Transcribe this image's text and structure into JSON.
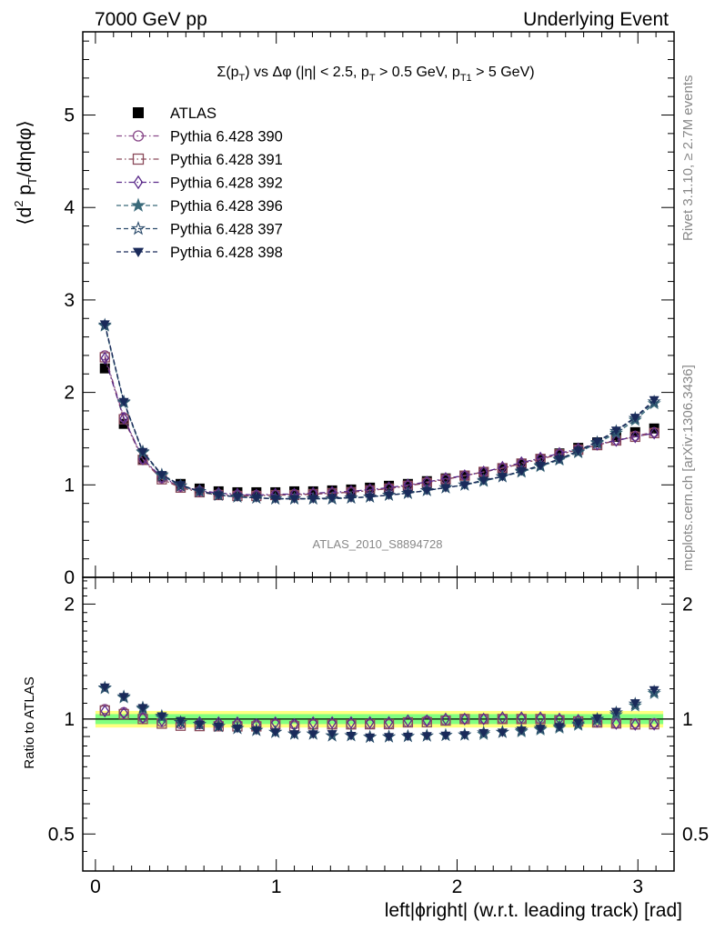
{
  "header": {
    "left": "7000 GeV pp",
    "right": "Underlying Event"
  },
  "side_labels": {
    "rivet": "Rivet 3.1.10, ≥ 2.7M events",
    "mcplots": "mcplots.cern.ch [arXiv:1306.3436]"
  },
  "chart_data": [
    {
      "type": "line",
      "title": "Σ(p_T) vs Δφ (|η| < 2.5, p_T > 0.5 GeV, p_T1 > 5 GeV)",
      "title_parts": {
        "a": "Σ(p",
        "a_sub": "T",
        "b": ") vs Δφ (|η| < 2.5, p",
        "b_sub": "T",
        "c": " > 0.5 GeV, p",
        "c_sub": "T1",
        "d": " > 5 GeV)"
      },
      "ylabel": "⟨d² p_T/dηdφ⟩",
      "ylabel_parts": {
        "a": "⟨d",
        "sup": "2",
        "b": " p",
        "sub": "T",
        "c": "/dηdφ⟩"
      },
      "xlim": [
        -0.07,
        3.2
      ],
      "ylim": [
        0,
        5.9
      ],
      "yticks": [
        "0",
        "1",
        "2",
        "3",
        "4",
        "5"
      ],
      "watermark": "ATLAS_2010_S8894728",
      "legend_position": "top-left",
      "x": [
        0.052,
        0.157,
        0.262,
        0.367,
        0.471,
        0.576,
        0.681,
        0.785,
        0.89,
        0.995,
        1.1,
        1.204,
        1.309,
        1.414,
        1.518,
        1.623,
        1.728,
        1.833,
        1.937,
        2.042,
        2.147,
        2.251,
        2.356,
        2.461,
        2.566,
        2.67,
        2.775,
        2.88,
        2.985,
        3.09
      ],
      "series": [
        {
          "name": "ATLAS",
          "color": "#000000",
          "marker": "square-filled",
          "line": "none",
          "values": [
            2.26,
            1.66,
            1.27,
            1.09,
            1.01,
            0.96,
            0.93,
            0.92,
            0.92,
            0.92,
            0.93,
            0.93,
            0.94,
            0.95,
            0.97,
            0.99,
            1.01,
            1.04,
            1.07,
            1.1,
            1.14,
            1.18,
            1.23,
            1.28,
            1.34,
            1.4,
            1.46,
            1.52,
            1.57,
            1.61
          ]
        },
        {
          "name": "Pythia 6.428 390",
          "color": "#8a4a8a",
          "marker": "circle-open",
          "line": "dashdot",
          "values": [
            2.4,
            1.73,
            1.28,
            1.07,
            0.98,
            0.93,
            0.9,
            0.89,
            0.89,
            0.89,
            0.9,
            0.9,
            0.91,
            0.92,
            0.94,
            0.96,
            0.99,
            1.03,
            1.06,
            1.1,
            1.14,
            1.18,
            1.23,
            1.28,
            1.33,
            1.38,
            1.43,
            1.48,
            1.53,
            1.57
          ]
        },
        {
          "name": "Pythia 6.428 391",
          "color": "#8a4a5a",
          "marker": "square-open",
          "line": "dashdot",
          "values": [
            2.38,
            1.71,
            1.27,
            1.06,
            0.97,
            0.92,
            0.89,
            0.88,
            0.88,
            0.89,
            0.89,
            0.9,
            0.91,
            0.92,
            0.94,
            0.96,
            0.99,
            1.02,
            1.06,
            1.1,
            1.14,
            1.18,
            1.23,
            1.28,
            1.33,
            1.38,
            1.43,
            1.48,
            1.52,
            1.56
          ]
        },
        {
          "name": "Pythia 6.428 392",
          "color": "#5a2a8a",
          "marker": "diamond-open",
          "line": "dashdot",
          "values": [
            2.37,
            1.72,
            1.28,
            1.08,
            0.99,
            0.94,
            0.91,
            0.9,
            0.89,
            0.9,
            0.9,
            0.91,
            0.92,
            0.93,
            0.95,
            0.97,
            1.0,
            1.03,
            1.07,
            1.1,
            1.14,
            1.19,
            1.24,
            1.29,
            1.34,
            1.39,
            1.44,
            1.48,
            1.52,
            1.56
          ]
        },
        {
          "name": "Pythia 6.428 396",
          "color": "#3a6a7a",
          "marker": "star-filled",
          "line": "dashed",
          "values": [
            2.72,
            1.89,
            1.35,
            1.1,
            0.99,
            0.93,
            0.89,
            0.87,
            0.86,
            0.85,
            0.85,
            0.85,
            0.85,
            0.86,
            0.87,
            0.89,
            0.91,
            0.94,
            0.97,
            1.0,
            1.04,
            1.09,
            1.14,
            1.2,
            1.27,
            1.35,
            1.45,
            1.56,
            1.7,
            1.88
          ]
        },
        {
          "name": "Pythia 6.428 397",
          "color": "#2a4a6a",
          "marker": "star-open",
          "line": "dashed",
          "values": [
            2.73,
            1.9,
            1.36,
            1.11,
            0.99,
            0.93,
            0.89,
            0.87,
            0.86,
            0.85,
            0.85,
            0.85,
            0.85,
            0.86,
            0.87,
            0.89,
            0.91,
            0.94,
            0.97,
            1.0,
            1.05,
            1.09,
            1.15,
            1.21,
            1.28,
            1.36,
            1.46,
            1.58,
            1.72,
            1.9
          ]
        },
        {
          "name": "Pythia 6.428 398",
          "color": "#1a2a5a",
          "marker": "triangle-down-filled",
          "line": "dashed",
          "values": [
            2.74,
            1.9,
            1.36,
            1.11,
            1.0,
            0.93,
            0.89,
            0.87,
            0.86,
            0.85,
            0.85,
            0.85,
            0.86,
            0.86,
            0.87,
            0.89,
            0.91,
            0.94,
            0.97,
            1.0,
            1.05,
            1.09,
            1.15,
            1.21,
            1.28,
            1.37,
            1.47,
            1.59,
            1.73,
            1.92
          ]
        }
      ]
    },
    {
      "type": "line",
      "ylabel": "Ratio to ATLAS",
      "xlabel": "left|ϕright| (w.r.t. leading track) [rad]",
      "xlim": [
        -0.07,
        3.2
      ],
      "ylim": [
        0.4,
        2.35
      ],
      "yticks": [
        "0.5",
        "1",
        "2"
      ],
      "xticks": [
        "0",
        "1",
        "2",
        "3"
      ],
      "band_colors": {
        "outer": "#ffff80",
        "inner": "#80ff80"
      },
      "band_outer": [
        0.95,
        1.05
      ],
      "band_inner": [
        0.97,
        1.03
      ]
    }
  ]
}
